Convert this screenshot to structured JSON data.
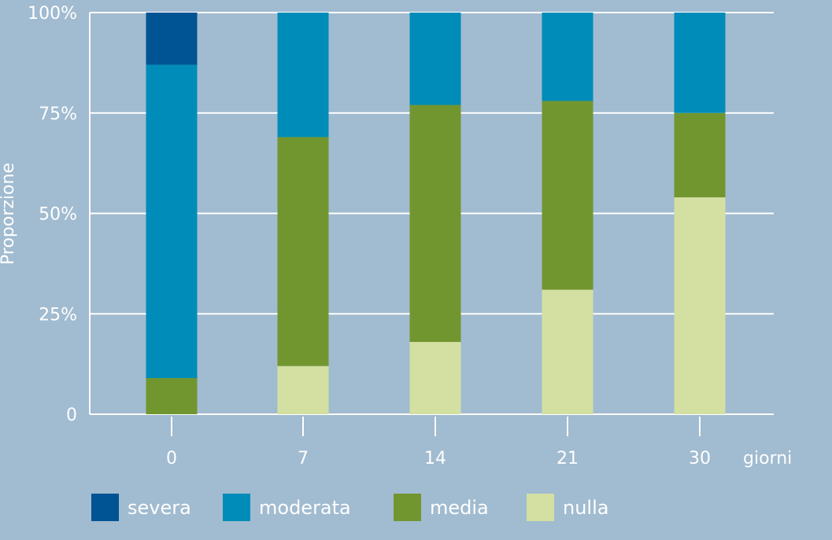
{
  "chart_data": {
    "type": "bar",
    "stacked": true,
    "categories": [
      "0",
      "7",
      "14",
      "21",
      "30"
    ],
    "xlabel": "giorni",
    "ylabel": "Proporzione",
    "ylim": [
      0,
      1
    ],
    "yticks": [
      {
        "value": 0,
        "label": "0"
      },
      {
        "value": 0.25,
        "label": "25%"
      },
      {
        "value": 0.5,
        "label": "50%"
      },
      {
        "value": 0.75,
        "label": "75%"
      },
      {
        "value": 1,
        "label": "100%"
      }
    ],
    "grid": true,
    "legend_position": "bottom",
    "series": [
      {
        "name": "nulla",
        "color": "#d3e0a2",
        "values": [
          0.0,
          0.12,
          0.18,
          0.31,
          0.54
        ]
      },
      {
        "name": "media",
        "color": "#72962f",
        "values": [
          0.09,
          0.57,
          0.59,
          0.47,
          0.21
        ]
      },
      {
        "name": "moderata",
        "color": "#008cb8",
        "values": [
          0.78,
          0.31,
          0.23,
          0.22,
          0.25
        ]
      },
      {
        "name": "severa",
        "color": "#005493",
        "values": [
          0.13,
          0.0,
          0.0,
          0.0,
          0.0
        ]
      }
    ],
    "legend_order": [
      "severa",
      "moderata",
      "media",
      "nulla"
    ],
    "colors": {
      "axis": "#ffffff",
      "grid": "#ffffff",
      "background": "#a1bbd0"
    }
  }
}
